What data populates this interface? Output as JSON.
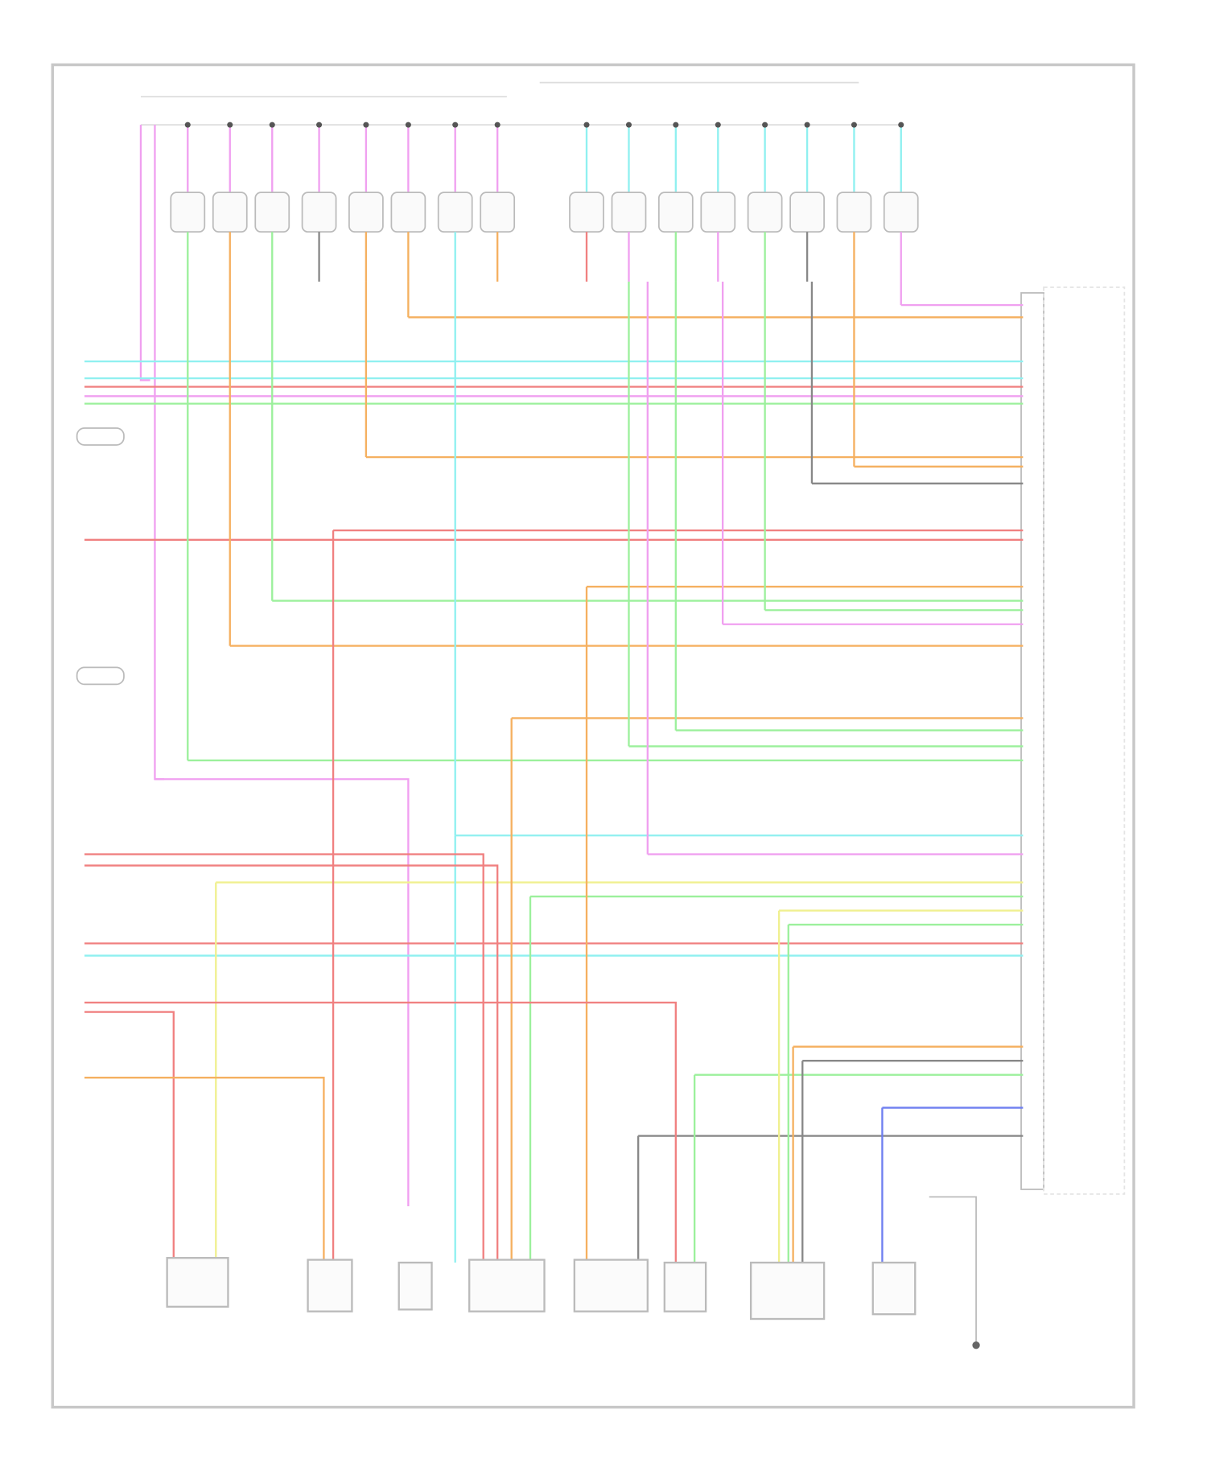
{
  "diagram": {
    "title": "",
    "colors": {
      "frame": "#c8c8c8",
      "pink": "#f0a0f0",
      "cyan": "#8ff0f0",
      "red": "#f08080",
      "green": "#9cf09c",
      "orange": "#f5b060",
      "yellow": "#f0f090",
      "gray": "#888888",
      "blue": "#6f7ff0",
      "component": "#bbbbbb"
    }
  }
}
